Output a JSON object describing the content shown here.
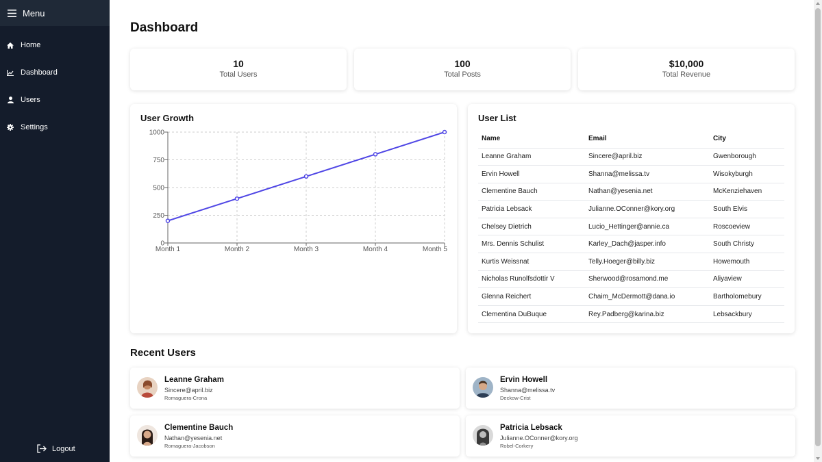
{
  "sidebar": {
    "menu_label": "Menu",
    "items": [
      {
        "label": "Home",
        "icon": "home-icon"
      },
      {
        "label": "Dashboard",
        "icon": "chart-line-icon"
      },
      {
        "label": "Users",
        "icon": "user-icon"
      },
      {
        "label": "Settings",
        "icon": "gear-icon"
      }
    ],
    "logout_label": "Logout",
    "colors": {
      "background": "#141c2b",
      "header": "#1f2937"
    }
  },
  "page": {
    "title": "Dashboard"
  },
  "stats": [
    {
      "value": "10",
      "label": "Total Users"
    },
    {
      "value": "100",
      "label": "Total Posts"
    },
    {
      "value": "$10,000",
      "label": "Total Revenue"
    }
  ],
  "growth": {
    "title": "User Growth"
  },
  "chart_data": {
    "type": "line",
    "title": "User Growth",
    "categories": [
      "Month 1",
      "Month 2",
      "Month 3",
      "Month 4",
      "Month 5"
    ],
    "values": [
      200,
      400,
      600,
      800,
      1000
    ],
    "y_ticks": [
      "0",
      "250",
      "500",
      "750",
      "1000"
    ],
    "ylim": [
      0,
      1000
    ],
    "grid": true,
    "line_color": "#4f46e5"
  },
  "user_list": {
    "title": "User List",
    "columns": [
      "Name",
      "Email",
      "City"
    ],
    "rows": [
      [
        "Leanne Graham",
        "Sincere@april.biz",
        "Gwenborough"
      ],
      [
        "Ervin Howell",
        "Shanna@melissa.tv",
        "Wisokyburgh"
      ],
      [
        "Clementine Bauch",
        "Nathan@yesenia.net",
        "McKenziehaven"
      ],
      [
        "Patricia Lebsack",
        "Julianne.OConner@kory.org",
        "South Elvis"
      ],
      [
        "Chelsey Dietrich",
        "Lucio_Hettinger@annie.ca",
        "Roscoeview"
      ],
      [
        "Mrs. Dennis Schulist",
        "Karley_Dach@jasper.info",
        "South Christy"
      ],
      [
        "Kurtis Weissnat",
        "Telly.Hoeger@billy.biz",
        "Howemouth"
      ],
      [
        "Nicholas Runolfsdottir V",
        "Sherwood@rosamond.me",
        "Aliyaview"
      ],
      [
        "Glenna Reichert",
        "Chaim_McDermott@dana.io",
        "Bartholomebury"
      ],
      [
        "Clementina DuBuque",
        "Rey.Padberg@karina.biz",
        "Lebsackbury"
      ]
    ]
  },
  "recent": {
    "title": "Recent Users",
    "users": [
      {
        "name": "Leanne Graham",
        "email": "Sincere@april.biz",
        "company": "Romaguera-Crona"
      },
      {
        "name": "Ervin Howell",
        "email": "Shanna@melissa.tv",
        "company": "Deckow-Crist"
      },
      {
        "name": "Clementine Bauch",
        "email": "Nathan@yesenia.net",
        "company": "Romaguera-Jacobson"
      },
      {
        "name": "Patricia Lebsack",
        "email": "Julianne.OConner@kory.org",
        "company": "Robel-Corkery"
      }
    ]
  }
}
